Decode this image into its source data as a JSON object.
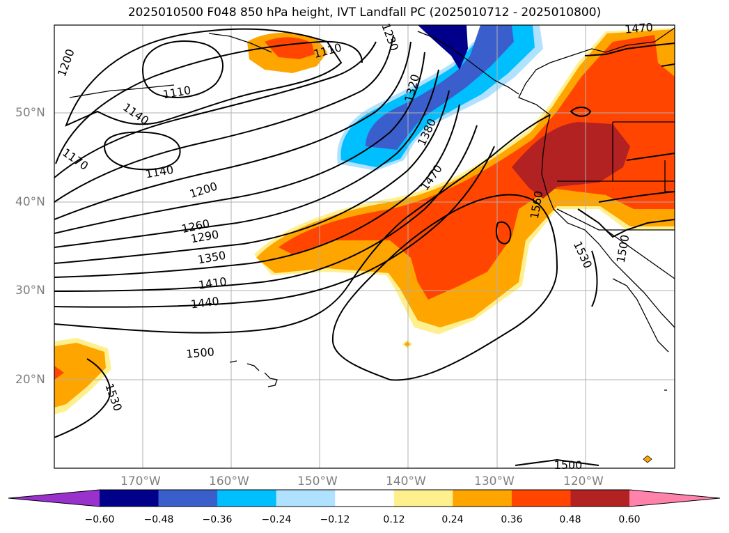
{
  "title": "2025010500 F048 850 hPa height, IVT Landfall PC (2025010712 - 2025010800)",
  "lat_labels": [
    "50°N",
    "40°N",
    "30°N",
    "20°N"
  ],
  "lon_labels": [
    "170°W",
    "160°W",
    "150°W",
    "140°W",
    "130°W",
    "120°W"
  ],
  "height_contour_labels": [
    "1110",
    "1110",
    "1140",
    "1140",
    "1170",
    "1200",
    "1200",
    "1230",
    "1260",
    "1290",
    "1320",
    "1350",
    "1380",
    "1410",
    "1440",
    "1470",
    "1470",
    "1500",
    "1500",
    "1500",
    "1530",
    "1530",
    "1560"
  ],
  "colorbar": {
    "ticks": [
      "−0.60",
      "−0.48",
      "−0.36",
      "−0.24",
      "−0.12",
      "0.12",
      "0.24",
      "0.36",
      "0.48",
      "0.60"
    ],
    "colors": [
      "#9932cc",
      "#00008b",
      "#3a5fcd",
      "#00bfff",
      "#b0e2ff",
      "#ffffff",
      "#fff08f",
      "#ffa500",
      "#ff4500",
      "#b22222",
      "#ff82ab"
    ]
  }
}
